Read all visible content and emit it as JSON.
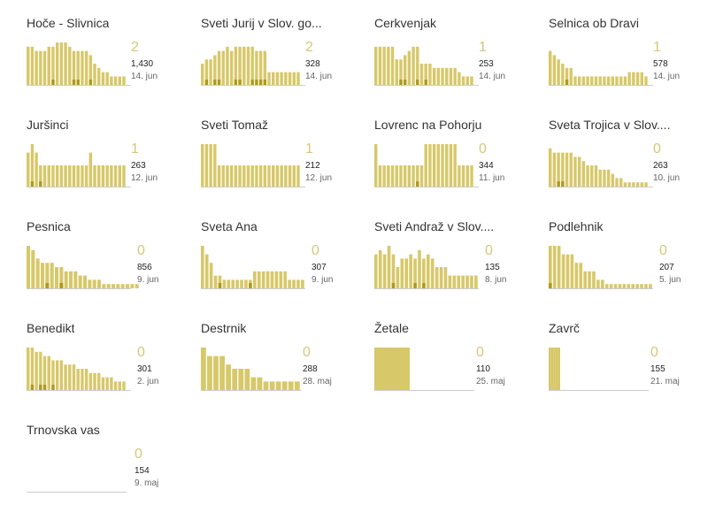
{
  "colors": {
    "bar": "#d7c869",
    "bar_light": "#e6dc98",
    "mark": "#b09a1a",
    "axis": "#cccccc",
    "count": "#d4c87a"
  },
  "chart_data": [
    {
      "type": "bar",
      "title": "Hoče - Slivnica",
      "count": "2",
      "total": "1,430",
      "date": "14. jun",
      "values": [
        9,
        9,
        8,
        8,
        8,
        9,
        9,
        10,
        10,
        10,
        9,
        8,
        8,
        8,
        8,
        7,
        5,
        4,
        3,
        3,
        2,
        2,
        2,
        2
      ],
      "marks": [
        0,
        0,
        0,
        0,
        0,
        0,
        1,
        0,
        0,
        0,
        0,
        1,
        1,
        0,
        0,
        1,
        0,
        0,
        0,
        0,
        0,
        0,
        0,
        0
      ]
    },
    {
      "type": "bar",
      "title": "Sveti Jurij v Slov. go...",
      "count": "2",
      "total": "328",
      "date": "14. jun",
      "values": [
        5,
        6,
        6,
        7,
        8,
        8,
        9,
        8,
        9,
        9,
        9,
        9,
        9,
        8,
        8,
        8,
        3,
        3,
        3,
        3,
        3,
        3,
        3,
        3
      ],
      "marks": [
        0,
        1,
        0,
        1,
        1,
        0,
        0,
        0,
        1,
        1,
        0,
        0,
        1,
        1,
        1,
        1,
        0,
        0,
        0,
        0,
        0,
        0,
        0,
        0
      ]
    },
    {
      "type": "bar",
      "title": "Cerkvenjak",
      "count": "1",
      "total": "253",
      "date": "14. jun",
      "values": [
        9,
        9,
        9,
        9,
        9,
        6,
        6,
        7,
        8,
        9,
        9,
        5,
        5,
        5,
        4,
        4,
        4,
        4,
        4,
        4,
        3,
        2,
        2,
        2
      ],
      "marks": [
        0,
        0,
        0,
        0,
        0,
        0,
        1,
        1,
        0,
        0,
        1,
        0,
        1,
        0,
        0,
        0,
        0,
        0,
        0,
        0,
        0,
        0,
        0,
        0
      ]
    },
    {
      "type": "bar",
      "title": "Selnica ob Dravi",
      "count": "1",
      "total": "578",
      "date": "14. jun",
      "values": [
        8,
        7,
        6,
        5,
        4,
        4,
        2,
        2,
        2,
        2,
        2,
        2,
        2,
        2,
        2,
        2,
        2,
        2,
        2,
        3,
        3,
        3,
        3,
        2
      ],
      "marks": [
        0,
        0,
        0,
        0,
        1,
        0,
        0,
        0,
        0,
        0,
        0,
        0,
        0,
        0,
        0,
        0,
        0,
        0,
        0,
        0,
        0,
        0,
        0,
        0
      ]
    },
    {
      "type": "bar",
      "title": "Juršinci",
      "count": "1",
      "total": "263",
      "date": "12. jun",
      "values": [
        8,
        10,
        8,
        5,
        5,
        5,
        5,
        5,
        5,
        5,
        5,
        5,
        5,
        5,
        5,
        8,
        5,
        5,
        5,
        5,
        5,
        5,
        5,
        5
      ],
      "marks": [
        0,
        1,
        0,
        1,
        0,
        0,
        0,
        0,
        0,
        0,
        0,
        0,
        0,
        0,
        0,
        0,
        0,
        0,
        0,
        0,
        0,
        0,
        0,
        0
      ]
    },
    {
      "type": "bar",
      "title": "Sveti Tomaž",
      "count": "1",
      "total": "212",
      "date": "12. jun",
      "values": [
        10,
        10,
        10,
        10,
        5,
        5,
        5,
        5,
        5,
        5,
        5,
        5,
        5,
        5,
        5,
        5,
        5,
        5,
        5,
        5,
        5,
        5,
        5,
        5
      ],
      "marks": [
        0,
        0,
        0,
        0,
        0,
        0,
        0,
        0,
        0,
        0,
        0,
        0,
        0,
        0,
        0,
        0,
        0,
        0,
        0,
        0,
        0,
        0,
        0,
        0
      ]
    },
    {
      "type": "bar",
      "title": "Lovrenc na Pohorju",
      "count": "0",
      "total": "344",
      "date": "11. jun",
      "values": [
        10,
        5,
        5,
        5,
        5,
        5,
        5,
        5,
        5,
        5,
        5,
        5,
        10,
        10,
        10,
        10,
        10,
        10,
        10,
        10,
        5,
        5,
        5,
        5
      ],
      "marks": [
        0,
        0,
        0,
        0,
        0,
        0,
        0,
        0,
        0,
        0,
        1,
        0,
        0,
        0,
        0,
        0,
        0,
        0,
        0,
        0,
        0,
        0,
        0,
        0
      ]
    },
    {
      "type": "bar",
      "title": "Sveta Trojica v Slov....",
      "count": "0",
      "total": "263",
      "date": "10. jun",
      "values": [
        9,
        8,
        8,
        8,
        8,
        8,
        7,
        7,
        6,
        5,
        5,
        5,
        4,
        4,
        4,
        3,
        2,
        2,
        1,
        1,
        1,
        1,
        1,
        1
      ],
      "marks": [
        0,
        0,
        1,
        1,
        0,
        0,
        0,
        0,
        0,
        0,
        0,
        0,
        0,
        0,
        0,
        0,
        0,
        0,
        0,
        0,
        0,
        0,
        0,
        0
      ]
    },
    {
      "type": "bar",
      "title": "Pesnica",
      "count": "0",
      "total": "856",
      "date": "9. jun",
      "values": [
        10,
        9,
        7,
        6,
        6,
        6,
        5,
        5,
        4,
        4,
        4,
        3,
        3,
        2,
        2,
        2,
        1,
        1,
        1,
        1,
        1,
        1,
        1,
        1
      ],
      "marks": [
        0,
        0,
        0,
        0,
        1,
        0,
        0,
        1,
        0,
        0,
        0,
        0,
        0,
        0,
        0,
        0,
        0,
        0,
        0,
        0,
        0,
        0,
        0,
        0
      ]
    },
    {
      "type": "bar",
      "title": "Sveta Ana",
      "count": "0",
      "total": "307",
      "date": "9. jun",
      "values": [
        10,
        8,
        6,
        3,
        3,
        2,
        2,
        2,
        2,
        2,
        2,
        2,
        4,
        4,
        4,
        4,
        4,
        4,
        4,
        4,
        2,
        2,
        2,
        2
      ],
      "marks": [
        0,
        0,
        0,
        0,
        1,
        0,
        0,
        0,
        0,
        0,
        0,
        1,
        0,
        0,
        0,
        0,
        0,
        0,
        0,
        0,
        0,
        0,
        0,
        0
      ]
    },
    {
      "type": "bar",
      "title": "Sveti Andraž v Slov....",
      "count": "0",
      "total": "135",
      "date": "8. jun",
      "values": [
        8,
        9,
        8,
        10,
        8,
        5,
        7,
        7,
        8,
        7,
        9,
        7,
        8,
        7,
        5,
        5,
        5,
        3,
        3,
        3,
        3,
        3,
        3,
        3
      ],
      "marks": [
        0,
        0,
        0,
        0,
        1,
        0,
        0,
        0,
        0,
        1,
        0,
        1,
        0,
        0,
        0,
        0,
        0,
        0,
        0,
        0,
        0,
        0,
        0,
        0
      ]
    },
    {
      "type": "bar",
      "title": "Podlehnik",
      "count": "0",
      "total": "207",
      "date": "5. jun",
      "values": [
        10,
        10,
        10,
        8,
        8,
        8,
        6,
        6,
        4,
        4,
        4,
        2,
        2,
        1,
        1,
        1,
        1,
        1,
        1,
        1,
        1,
        1,
        1,
        1
      ],
      "marks": [
        1,
        0,
        0,
        0,
        0,
        0,
        0,
        0,
        0,
        0,
        0,
        0,
        0,
        0,
        0,
        0,
        0,
        0,
        0,
        0,
        0,
        0,
        0,
        0
      ]
    },
    {
      "type": "bar",
      "title": "Benedikt",
      "count": "0",
      "total": "301",
      "date": "2. jun",
      "values": [
        10,
        10,
        9,
        9,
        8,
        8,
        7,
        7,
        7,
        6,
        6,
        6,
        5,
        5,
        5,
        4,
        4,
        4,
        3,
        3,
        3,
        2,
        2,
        2
      ],
      "marks": [
        0,
        1,
        0,
        1,
        1,
        0,
        1,
        0,
        0,
        0,
        0,
        0,
        0,
        0,
        0,
        0,
        0,
        0,
        0,
        0,
        0,
        0,
        0,
        0
      ]
    },
    {
      "type": "bar",
      "title": "Destrnik",
      "count": "0",
      "total": "288",
      "date": "28. maj",
      "values": [
        10,
        8,
        8,
        8,
        6,
        5,
        5,
        5,
        3,
        3,
        2,
        2,
        2,
        2,
        2,
        2
      ],
      "marks": [
        0,
        0,
        0,
        0,
        0,
        0,
        0,
        0,
        0,
        0,
        0,
        0,
        0,
        0,
        0,
        0
      ]
    },
    {
      "type": "bar",
      "title": "Žetale",
      "count": "0",
      "total": "110",
      "date": "25. maj",
      "values": [
        10,
        10,
        10,
        10,
        10,
        10,
        10,
        10,
        10,
        10
      ],
      "marks": [
        0,
        0,
        0,
        0,
        0,
        0,
        0,
        0,
        0,
        0
      ]
    },
    {
      "type": "bar",
      "title": "Zavrč",
      "count": "0",
      "total": "155",
      "date": "21. maj",
      "values": [
        10,
        10,
        10,
        10,
        10
      ],
      "marks": [
        0,
        0,
        0,
        0,
        0
      ]
    },
    {
      "type": "bar",
      "title": "Trnovska vas",
      "count": "0",
      "total": "154",
      "date": "9. maj",
      "values": [],
      "marks": []
    }
  ]
}
